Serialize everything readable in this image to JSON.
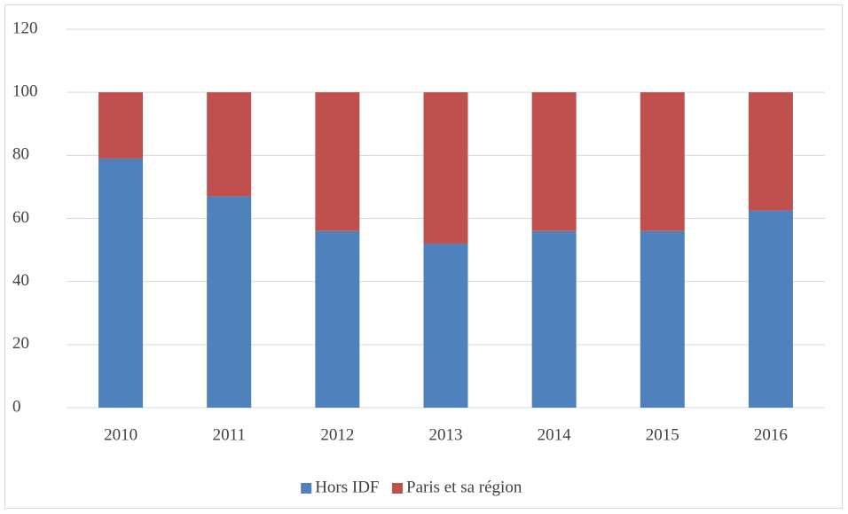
{
  "chart_data": {
    "type": "bar",
    "stacked": true,
    "categories": [
      "2010",
      "2011",
      "2012",
      "2013",
      "2014",
      "2015",
      "2016"
    ],
    "series": [
      {
        "name": "Hors IDF",
        "color": "#4f81bd",
        "values": [
          79,
          67,
          56,
          52,
          56,
          56,
          62.5
        ]
      },
      {
        "name": "Paris et sa région",
        "color": "#c0504d",
        "values": [
          21,
          33,
          44,
          48,
          44,
          44,
          37.5
        ]
      }
    ],
    "ylim": [
      0,
      120
    ],
    "yticks": [
      0,
      20,
      40,
      60,
      80,
      100,
      120
    ],
    "grid": true,
    "legend": "bottom"
  }
}
